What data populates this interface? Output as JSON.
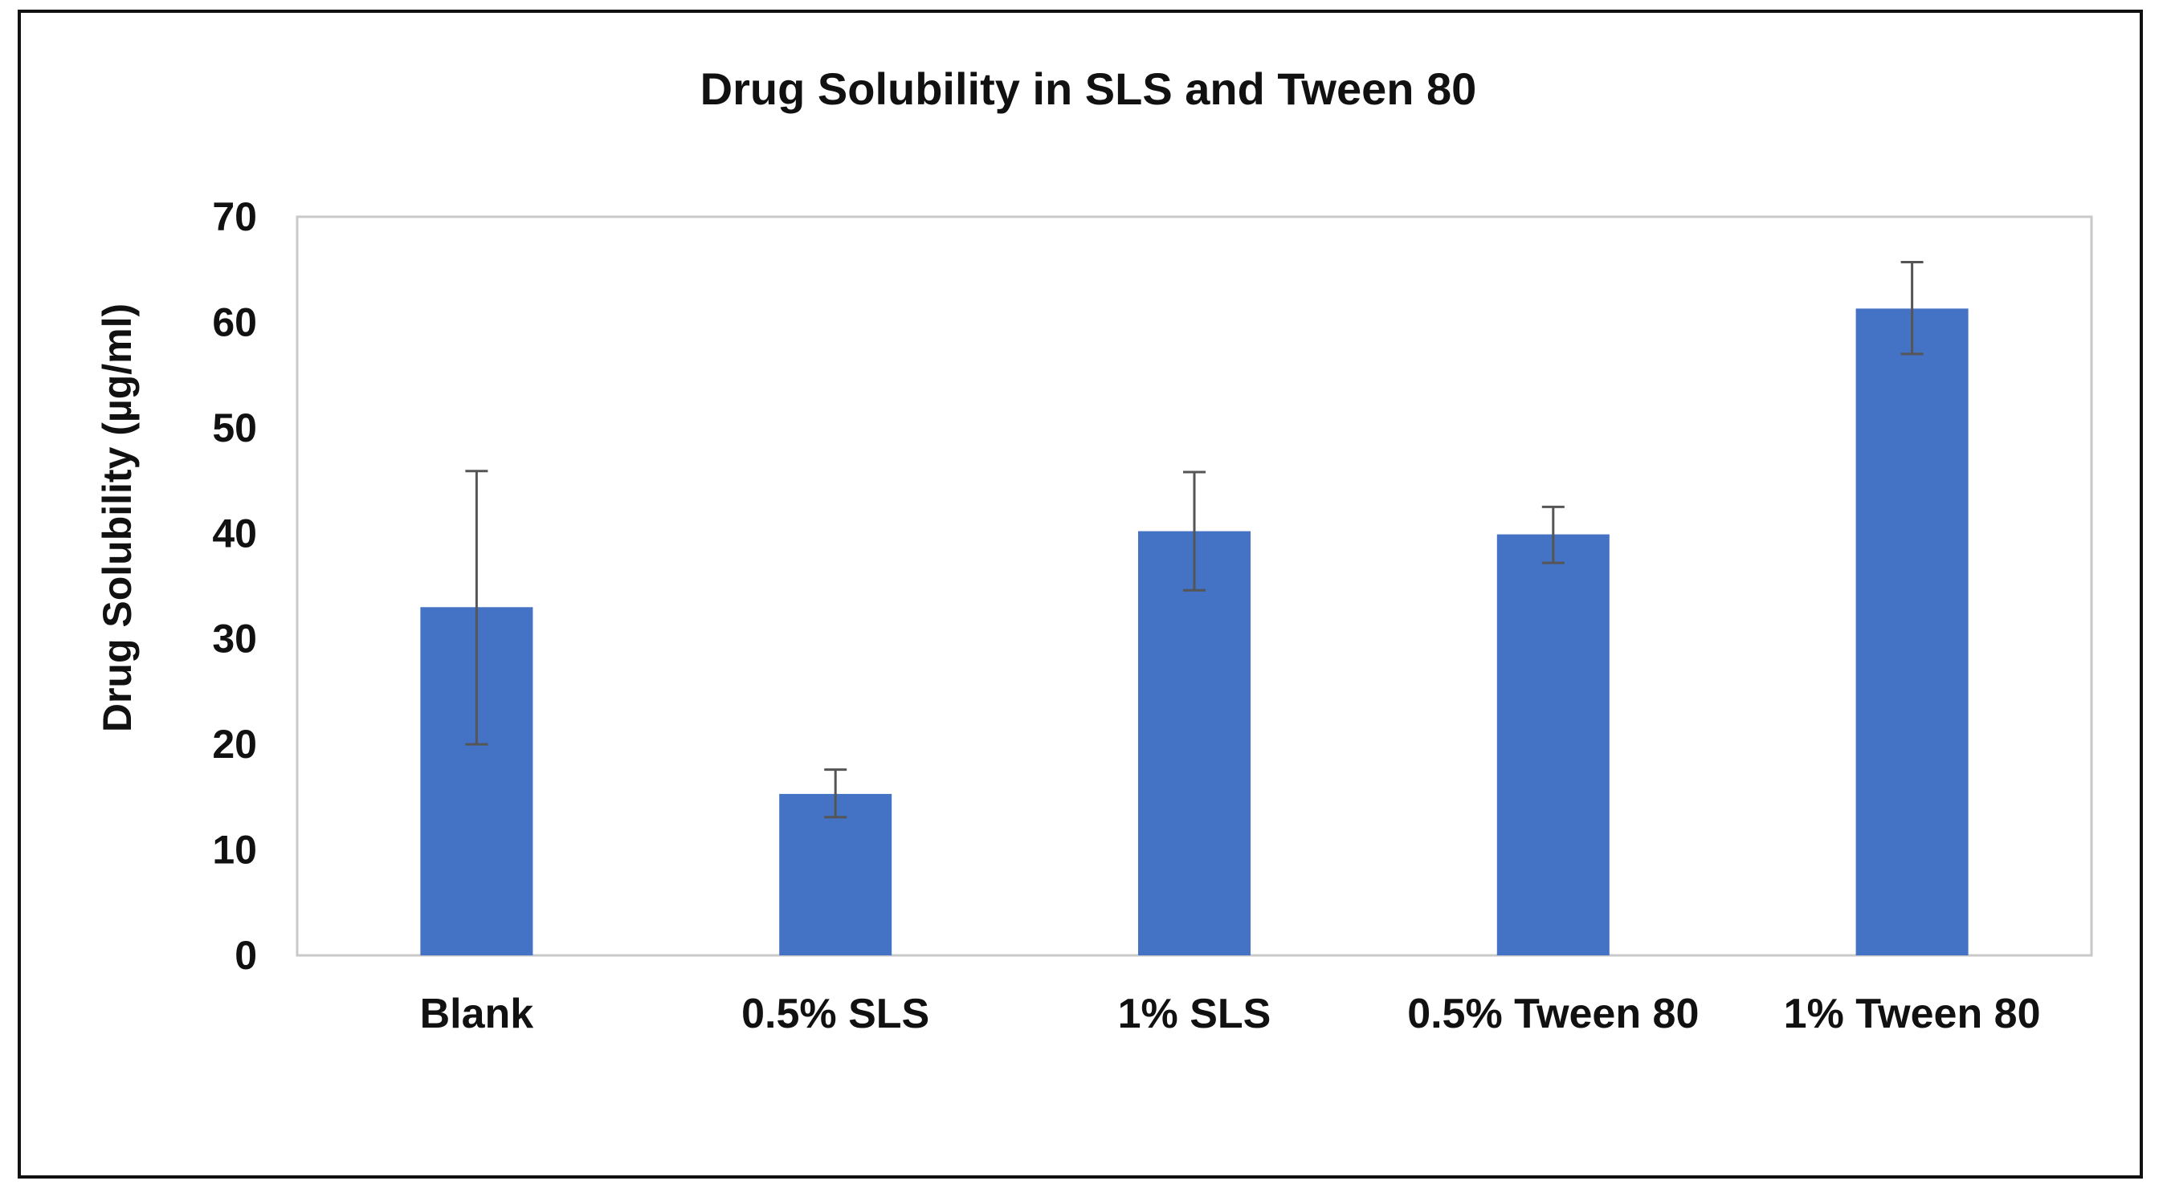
{
  "chart_data": {
    "type": "bar",
    "title": "Drug Solubility in SLS and Tween 80",
    "xlabel": "",
    "ylabel": "Drug  Solubility  (µg/ml)",
    "ylim": [
      0,
      70
    ],
    "yticks": [
      0,
      10,
      20,
      30,
      40,
      50,
      60,
      70
    ],
    "grid": false,
    "legend": "none",
    "categories": [
      "Blank",
      "0.5% SLS",
      "1% SLS",
      "0.5% Tween 80",
      "1% Tween 80"
    ],
    "values": [
      33,
      15.3,
      40.2,
      39.9,
      61.3
    ],
    "error_bars": [
      {
        "low": 20,
        "high": 45.9
      },
      {
        "low": 13.1,
        "high": 17.6
      },
      {
        "low": 34.6,
        "high": 45.8
      },
      {
        "low": 37.2,
        "high": 42.5
      },
      {
        "low": 57.0,
        "high": 65.7
      }
    ],
    "colors": {
      "bar": "#4472C4",
      "error_bar": "#555555",
      "plot_border": "#C9C9C9",
      "frame": "#111111",
      "text": "#111111"
    }
  }
}
